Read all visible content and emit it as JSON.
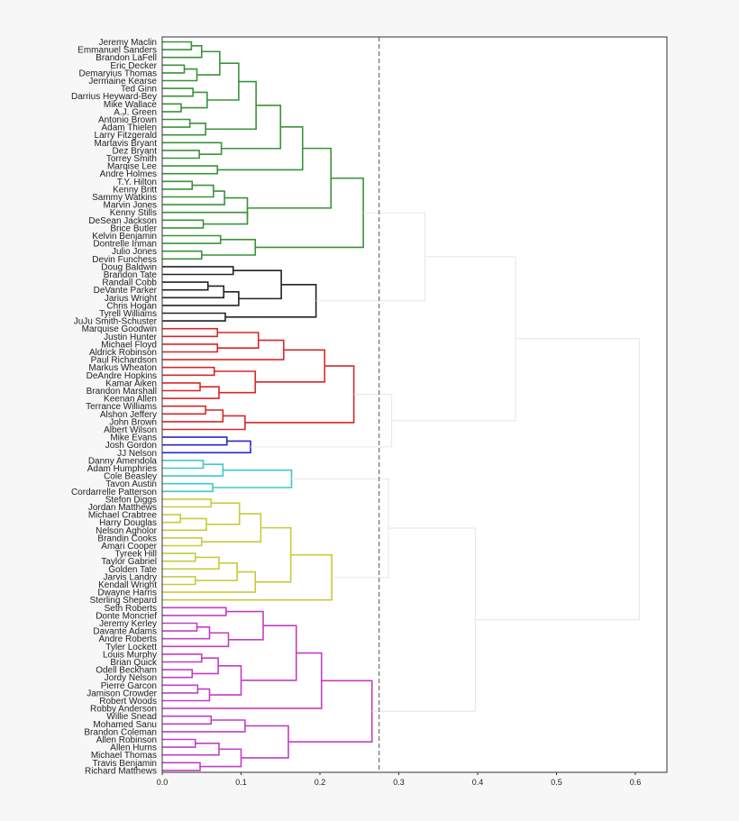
{
  "chart_data": {
    "type": "dendrogram",
    "orientation": "horizontal",
    "xlim": [
      0.0,
      0.64
    ],
    "xticks": [
      "0.0",
      "0.1",
      "0.2",
      "0.3",
      "0.4",
      "0.5",
      "0.6"
    ],
    "threshold": 0.275,
    "colors": {
      "green": "#3a923a",
      "black": "#222222",
      "red": "#d62728",
      "blue": "#2828cc",
      "cyan": "#3ec9c9",
      "yellow": "#c9c93e",
      "magenta": "#c23fc2",
      "above": "#e6e6e6",
      "threshold_line": "#777777"
    },
    "leaves": [
      "Jeremy Maclin",
      "Emmanuel Sanders",
      "Brandon LaFell",
      "Eric Decker",
      "Demaryius Thomas",
      "Jermaine Kearse",
      "Ted Ginn",
      "Darrius Heyward-Bey",
      "Mike Wallace",
      "A.J. Green",
      "Antonio Brown",
      "Adam Thielen",
      "Larry Fitzgerald",
      "Martavis Bryant",
      "Dez Bryant",
      "Torrey Smith",
      "Marqise Lee",
      "Andre Holmes",
      "T.Y. Hilton",
      "Kenny Britt",
      "Sammy Watkins",
      "Marvin Jones",
      "Kenny Stills",
      "DeSean Jackson",
      "Brice Butler",
      "Kelvin Benjamin",
      "Dontrelle Inman",
      "Julio Jones",
      "Devin Funchess",
      "Doug Baldwin",
      "Brandon Tate",
      "Randall Cobb",
      "DeVante Parker",
      "Jarius Wright",
      "Chris Hogan",
      "Tyrell Williams",
      "JuJu Smith-Schuster",
      "Marquise Goodwin",
      "Justin Hunter",
      "Michael Floyd",
      "Aldrick Robinson",
      "Paul Richardson",
      "Markus Wheaton",
      "DeAndre Hopkins",
      "Kamar Aiken",
      "Brandon Marshall",
      "Keenan Allen",
      "Terrance Williams",
      "Alshon Jeffery",
      "John Brown",
      "Albert Wilson",
      "Mike Evans",
      "Josh Gordon",
      "JJ Nelson",
      "Danny Amendola",
      "Adam Humphries",
      "Cole Beasley",
      "Tavon Austin",
      "Cordarrelle Patterson",
      "Stefon Diggs",
      "Jordan Matthews",
      "Michael Crabtree",
      "Harry Douglas",
      "Nelson Agholor",
      "Brandin Cooks",
      "Amari Cooper",
      "Tyreek Hill",
      "Taylor Gabriel",
      "Golden Tate",
      "Jarvis Landry",
      "Kendall Wright",
      "Dwayne Harris",
      "Sterling Shepard",
      "Seth Roberts",
      "Donte Moncrief",
      "Jeremy Kerley",
      "Davante Adams",
      "Andre Roberts",
      "Tyler Lockett",
      "Louis Murphy",
      "Brian Quick",
      "Odell Beckham",
      "Jordy Nelson",
      "Pierre Garcon",
      "Jamison Crowder",
      "Robert Woods",
      "Robby Anderson",
      "Willie Snead",
      "Mohamed Sanu",
      "Brandon Coleman",
      "Allen Robinson",
      "Allen Hurns",
      "Michael Thomas",
      "Travis Benjamin",
      "Richard Matthews"
    ],
    "merges": [
      {
        "id": "m1",
        "a": 0,
        "b": 1,
        "h": 0.037,
        "c": "green"
      },
      {
        "id": "m2",
        "a": "m1",
        "b": 2,
        "h": 0.05,
        "c": "green"
      },
      {
        "id": "m3",
        "a": 3,
        "b": 4,
        "h": 0.028,
        "c": "green"
      },
      {
        "id": "m4",
        "a": "m3",
        "b": 5,
        "h": 0.044,
        "c": "green"
      },
      {
        "id": "m5",
        "a": "m2",
        "b": "m4",
        "h": 0.073,
        "c": "green"
      },
      {
        "id": "m6",
        "a": 6,
        "b": 7,
        "h": 0.039,
        "c": "green"
      },
      {
        "id": "m7",
        "a": 8,
        "b": 9,
        "h": 0.024,
        "c": "green"
      },
      {
        "id": "m8",
        "a": "m6",
        "b": "m7",
        "h": 0.057,
        "c": "green"
      },
      {
        "id": "m9",
        "a": "m5",
        "b": "m8",
        "h": 0.097,
        "c": "green"
      },
      {
        "id": "m10",
        "a": 10,
        "b": 11,
        "h": 0.035,
        "c": "green"
      },
      {
        "id": "m11",
        "a": "m10",
        "b": 12,
        "h": 0.055,
        "c": "green"
      },
      {
        "id": "m12",
        "a": "m9",
        "b": "m11",
        "h": 0.119,
        "c": "green"
      },
      {
        "id": "m13",
        "a": 14,
        "b": 15,
        "h": 0.047,
        "c": "green"
      },
      {
        "id": "m14",
        "a": 13,
        "b": "m13",
        "h": 0.075,
        "c": "green"
      },
      {
        "id": "m15",
        "a": "m12",
        "b": "m14",
        "h": 0.15,
        "c": "green"
      },
      {
        "id": "m16",
        "a": 16,
        "b": 17,
        "h": 0.07,
        "c": "green"
      },
      {
        "id": "m17",
        "a": "m15",
        "b": "m16",
        "h": 0.178,
        "c": "green"
      },
      {
        "id": "m18",
        "a": 18,
        "b": 19,
        "h": 0.038,
        "c": "green"
      },
      {
        "id": "m19",
        "a": "m18",
        "b": 20,
        "h": 0.065,
        "c": "green"
      },
      {
        "id": "m20",
        "a": "m19",
        "b": 21,
        "h": 0.079,
        "c": "green"
      },
      {
        "id": "m21",
        "a": 23,
        "b": 24,
        "h": 0.052,
        "c": "green"
      },
      {
        "id": "m22",
        "a": 22,
        "b": "m21",
        "h": 0.108,
        "c": "green"
      },
      {
        "id": "m23",
        "a": "m20",
        "b": "m22",
        "h": 0.108,
        "c": "green"
      },
      {
        "id": "m24",
        "a": "m17",
        "b": "m23",
        "h": 0.214,
        "c": "green"
      },
      {
        "id": "m25",
        "a": 25,
        "b": 26,
        "h": 0.074,
        "c": "green"
      },
      {
        "id": "m26",
        "a": 27,
        "b": 28,
        "h": 0.05,
        "c": "green"
      },
      {
        "id": "m27",
        "a": "m25",
        "b": "m26",
        "h": 0.118,
        "c": "green"
      },
      {
        "id": "m28",
        "a": "m24",
        "b": "m27",
        "h": 0.255,
        "c": "green"
      },
      {
        "id": "m29",
        "a": 29,
        "b": 30,
        "h": 0.09,
        "c": "black"
      },
      {
        "id": "m30",
        "a": 31,
        "b": 32,
        "h": 0.058,
        "c": "black"
      },
      {
        "id": "m31",
        "a": "m30",
        "b": 33,
        "h": 0.078,
        "c": "black"
      },
      {
        "id": "m32",
        "a": "m31",
        "b": 34,
        "h": 0.097,
        "c": "black"
      },
      {
        "id": "m33",
        "a": "m29",
        "b": "m32",
        "h": 0.151,
        "c": "black"
      },
      {
        "id": "m34",
        "a": 35,
        "b": 36,
        "h": 0.08,
        "c": "black"
      },
      {
        "id": "m35",
        "a": "m33",
        "b": "m34",
        "h": 0.195,
        "c": "black"
      },
      {
        "id": "m36",
        "a": "m28",
        "b": "m35",
        "h": 0.333,
        "c": "above"
      },
      {
        "id": "m37",
        "a": 37,
        "b": 38,
        "h": 0.07,
        "c": "red"
      },
      {
        "id": "m38",
        "a": 39,
        "b": 40,
        "h": 0.07,
        "c": "red"
      },
      {
        "id": "m39",
        "a": "m37",
        "b": "m38",
        "h": 0.122,
        "c": "red"
      },
      {
        "id": "m40",
        "a": "m39",
        "b": 41,
        "h": 0.154,
        "c": "red"
      },
      {
        "id": "m41",
        "a": 42,
        "b": 43,
        "h": 0.066,
        "c": "red"
      },
      {
        "id": "m42",
        "a": 44,
        "b": 45,
        "h": 0.048,
        "c": "red"
      },
      {
        "id": "m43",
        "a": "m42",
        "b": 46,
        "h": 0.072,
        "c": "red"
      },
      {
        "id": "m44",
        "a": "m41",
        "b": "m43",
        "h": 0.118,
        "c": "red"
      },
      {
        "id": "m45",
        "a": "m40",
        "b": "m44",
        "h": 0.206,
        "c": "red"
      },
      {
        "id": "m46",
        "a": 47,
        "b": 48,
        "h": 0.055,
        "c": "red"
      },
      {
        "id": "m47",
        "a": "m46",
        "b": 49,
        "h": 0.077,
        "c": "red"
      },
      {
        "id": "m48",
        "a": "m47",
        "b": 50,
        "h": 0.105,
        "c": "red"
      },
      {
        "id": "m49",
        "a": "m45",
        "b": "m48",
        "h": 0.243,
        "c": "red"
      },
      {
        "id": "m50",
        "a": 51,
        "b": 52,
        "h": 0.082,
        "c": "blue"
      },
      {
        "id": "m51",
        "a": "m50",
        "b": 53,
        "h": 0.112,
        "c": "blue"
      },
      {
        "id": "m52",
        "a": "m49",
        "b": "m51",
        "h": 0.291,
        "c": "above"
      },
      {
        "id": "m53",
        "a": "m36",
        "b": "m52",
        "h": 0.448,
        "c": "above"
      },
      {
        "id": "m54",
        "a": 54,
        "b": 55,
        "h": 0.052,
        "c": "cyan"
      },
      {
        "id": "m55",
        "a": "m54",
        "b": 56,
        "h": 0.077,
        "c": "cyan"
      },
      {
        "id": "m56",
        "a": 57,
        "b": 58,
        "h": 0.064,
        "c": "cyan"
      },
      {
        "id": "m57",
        "a": "m55",
        "b": "m56",
        "h": 0.164,
        "c": "cyan"
      },
      {
        "id": "m58",
        "a": 59,
        "b": 60,
        "h": 0.062,
        "c": "yellow"
      },
      {
        "id": "m59",
        "a": 61,
        "b": 62,
        "h": 0.023,
        "c": "yellow"
      },
      {
        "id": "m60",
        "a": "m59",
        "b": 63,
        "h": 0.056,
        "c": "yellow"
      },
      {
        "id": "m61",
        "a": "m58",
        "b": "m60",
        "h": 0.098,
        "c": "yellow"
      },
      {
        "id": "m62",
        "a": 64,
        "b": 65,
        "h": 0.05,
        "c": "yellow"
      },
      {
        "id": "m63",
        "a": "m61",
        "b": "m62",
        "h": 0.125,
        "c": "yellow"
      },
      {
        "id": "m64",
        "a": 66,
        "b": 67,
        "h": 0.042,
        "c": "yellow"
      },
      {
        "id": "m65",
        "a": "m64",
        "b": 68,
        "h": 0.072,
        "c": "yellow"
      },
      {
        "id": "m66",
        "a": 69,
        "b": 70,
        "h": 0.042,
        "c": "yellow"
      },
      {
        "id": "m67",
        "a": "m65",
        "b": "m66",
        "h": 0.095,
        "c": "yellow"
      },
      {
        "id": "m68",
        "a": "m67",
        "b": 71,
        "h": 0.118,
        "c": "yellow"
      },
      {
        "id": "m69",
        "a": "m63",
        "b": "m68",
        "h": 0.163,
        "c": "yellow"
      },
      {
        "id": "m70",
        "a": "m69",
        "b": 72,
        "h": 0.215,
        "c": "yellow"
      },
      {
        "id": "m71",
        "a": "m57",
        "b": "m70",
        "h": 0.287,
        "c": "above"
      },
      {
        "id": "m72",
        "a": 73,
        "b": 74,
        "h": 0.081,
        "c": "magenta"
      },
      {
        "id": "m73",
        "a": 75,
        "b": 76,
        "h": 0.044,
        "c": "magenta"
      },
      {
        "id": "m74",
        "a": "m73",
        "b": 77,
        "h": 0.06,
        "c": "magenta"
      },
      {
        "id": "m75",
        "a": "m74",
        "b": 78,
        "h": 0.084,
        "c": "magenta"
      },
      {
        "id": "m76",
        "a": "m72",
        "b": "m75",
        "h": 0.128,
        "c": "magenta"
      },
      {
        "id": "m77",
        "a": 79,
        "b": 80,
        "h": 0.05,
        "c": "magenta"
      },
      {
        "id": "m78",
        "a": 81,
        "b": 82,
        "h": 0.038,
        "c": "magenta"
      },
      {
        "id": "m79",
        "a": "m77",
        "b": "m78",
        "h": 0.071,
        "c": "magenta"
      },
      {
        "id": "m80",
        "a": 83,
        "b": 84,
        "h": 0.045,
        "c": "magenta"
      },
      {
        "id": "m81",
        "a": "m80",
        "b": 85,
        "h": 0.06,
        "c": "magenta"
      },
      {
        "id": "m82",
        "a": "m79",
        "b": "m81",
        "h": 0.1,
        "c": "magenta"
      },
      {
        "id": "m83",
        "a": "m76",
        "b": "m82",
        "h": 0.17,
        "c": "magenta"
      },
      {
        "id": "m84",
        "a": "m83",
        "b": 86,
        "h": 0.202,
        "c": "magenta"
      },
      {
        "id": "m85",
        "a": 87,
        "b": 88,
        "h": 0.062,
        "c": "magenta"
      },
      {
        "id": "m86",
        "a": "m85",
        "b": 89,
        "h": 0.105,
        "c": "magenta"
      },
      {
        "id": "m87",
        "a": 90,
        "b": 91,
        "h": 0.042,
        "c": "magenta"
      },
      {
        "id": "m88",
        "a": "m87",
        "b": 92,
        "h": 0.072,
        "c": "magenta"
      },
      {
        "id": "m89",
        "a": 93,
        "b": 94,
        "h": 0.048,
        "c": "magenta"
      },
      {
        "id": "m90",
        "a": "m88",
        "b": "m89",
        "h": 0.1,
        "c": "magenta"
      },
      {
        "id": "m91",
        "a": "m86",
        "b": "m90",
        "h": 0.16,
        "c": "magenta"
      },
      {
        "id": "m92",
        "a": "m84",
        "b": "m91",
        "h": 0.266,
        "c": "magenta"
      },
      {
        "id": "m93",
        "a": "m71",
        "b": "m92",
        "h": 0.397,
        "c": "above"
      },
      {
        "id": "m94",
        "a": "m53",
        "b": "m93",
        "h": 0.605,
        "c": "above"
      }
    ]
  }
}
